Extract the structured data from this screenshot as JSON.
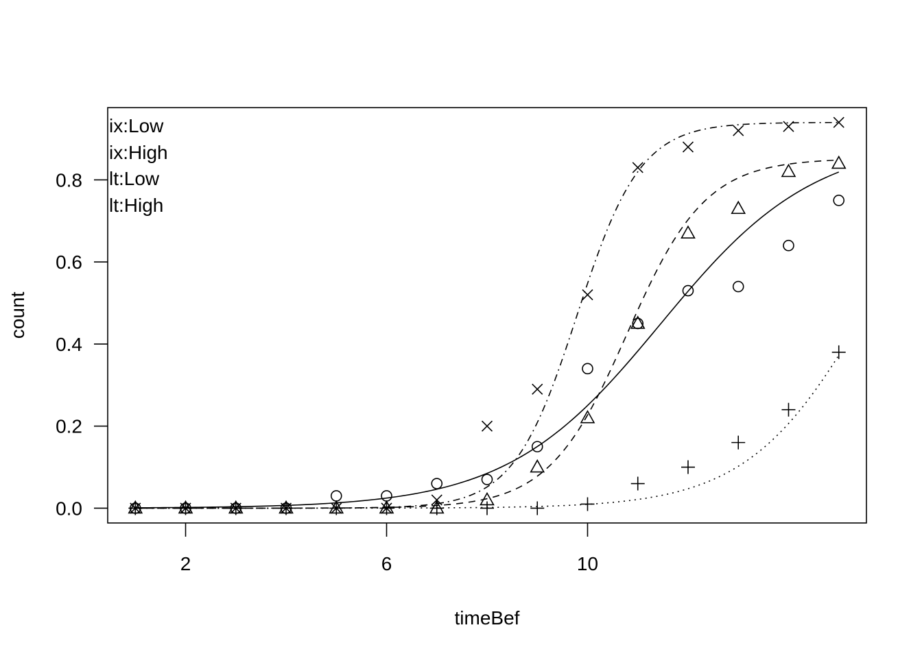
{
  "chart_data": {
    "type": "scatter",
    "title": "",
    "xlabel": "timeBef",
    "ylabel": "count",
    "xlim": [
      0.45,
      15.55
    ],
    "ylim": [
      -0.036,
      0.976
    ],
    "x_ticks": [
      2,
      6,
      10
    ],
    "y_ticks": [
      0.0,
      0.2,
      0.4,
      0.6,
      0.8
    ],
    "y_tick_labels": [
      "0.0",
      "0.2",
      "0.4",
      "0.6",
      "0.8"
    ],
    "grid": false,
    "legend_position": "top-left",
    "legend": [
      "ix:Low",
      "ix:High",
      "lt:Low",
      "lt:High"
    ],
    "series": [
      {
        "name": "ix:Low",
        "marker": "circle",
        "line": "solid",
        "x": [
          1,
          2,
          3,
          4,
          5,
          6,
          7,
          8,
          9,
          10,
          11,
          12,
          13,
          14,
          15
        ],
        "values": [
          0,
          0,
          0,
          0,
          0.03,
          0.03,
          0.06,
          0.07,
          0.15,
          0.34,
          0.45,
          0.53,
          0.54,
          0.64,
          0.75
        ],
        "fit_mid": 11.46,
        "fit_scale": 1.53,
        "fit_max": 0.9
      },
      {
        "name": "ix:High",
        "marker": "plus",
        "line": "dotted",
        "x": [
          1,
          2,
          3,
          4,
          5,
          6,
          7,
          8,
          9,
          10,
          11,
          12,
          13,
          14,
          15
        ],
        "values": [
          0,
          0,
          0,
          0,
          0,
          0,
          0,
          0,
          0,
          0.01,
          0.06,
          0.1,
          0.16,
          0.24,
          0.38
        ],
        "fit_mid": 15.63,
        "fit_scale": 1.21,
        "fit_max": 1.0
      },
      {
        "name": "lt:Low",
        "marker": "triangle",
        "line": "dashed",
        "x": [
          1,
          2,
          3,
          4,
          5,
          6,
          7,
          8,
          9,
          10,
          11,
          12,
          13,
          14,
          15
        ],
        "values": [
          0,
          0,
          0,
          0,
          0,
          0,
          0,
          0.02,
          0.1,
          0.22,
          0.45,
          0.67,
          0.73,
          0.82,
          0.84
        ],
        "fit_mid": 10.79,
        "fit_scale": 0.78,
        "fit_max": 0.852
      },
      {
        "name": "lt:High",
        "marker": "cross",
        "line": "dotdash",
        "x": [
          1,
          2,
          3,
          4,
          5,
          6,
          7,
          8,
          9,
          10,
          11,
          12,
          13,
          14,
          15
        ],
        "values": [
          0,
          0,
          0,
          0,
          0,
          0,
          0.02,
          0.2,
          0.29,
          0.52,
          0.83,
          0.88,
          0.92,
          0.93,
          0.94
        ],
        "fit_mid": 9.79,
        "fit_scale": 0.63,
        "fit_max": 0.94
      }
    ]
  }
}
